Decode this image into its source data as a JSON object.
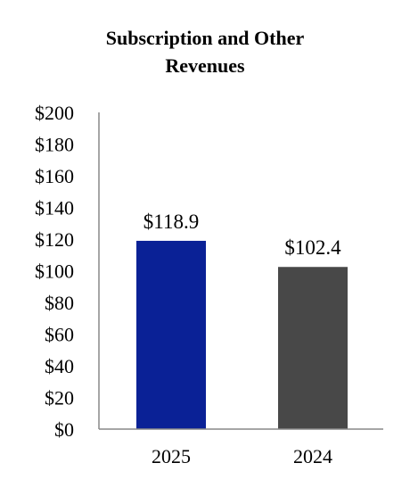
{
  "chart_data": {
    "type": "bar",
    "title_lines": [
      "Subscription and Other",
      "Revenues"
    ],
    "categories": [
      "2025",
      "2024"
    ],
    "values": [
      118.9,
      102.4
    ],
    "data_labels": [
      "$118.9",
      "$102.4"
    ],
    "bar_colors": [
      "#0a2196",
      "#484848"
    ],
    "ylim": [
      0,
      200
    ],
    "y_ticks": [
      0,
      20,
      40,
      60,
      80,
      100,
      120,
      140,
      160,
      180,
      200
    ],
    "y_tick_labels": [
      "$0",
      "$20",
      "$40",
      "$60",
      "$80",
      "$100",
      "$120",
      "$140",
      "$160",
      "$180",
      "$200"
    ],
    "xlabel": "",
    "ylabel": "",
    "grid": false,
    "legend": "none",
    "axis_color": "#888888"
  }
}
